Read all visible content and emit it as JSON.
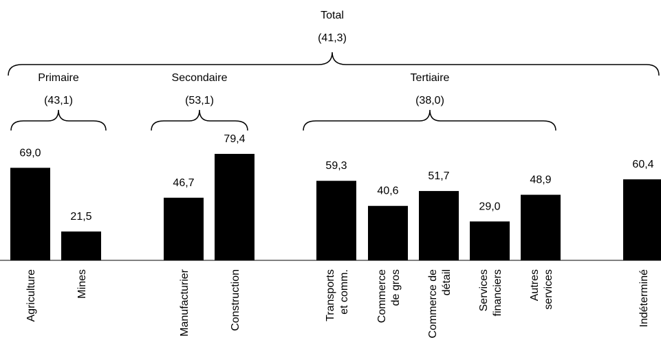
{
  "chart_data": {
    "type": "bar",
    "categories": [
      [
        "Agriculture"
      ],
      [
        "Mines"
      ],
      [
        "Manufacturier"
      ],
      [
        "Construction"
      ],
      [
        "Transports",
        "et comm."
      ],
      [
        "Commerce",
        "de gros"
      ],
      [
        "Commerce de",
        "détail"
      ],
      [
        "Services",
        "financiers"
      ],
      [
        "Autres",
        "services"
      ],
      [
        "Indéterminé"
      ]
    ],
    "values": [
      69.0,
      21.5,
      46.7,
      79.4,
      59.3,
      40.6,
      51.7,
      29.0,
      48.9,
      60.4
    ],
    "value_labels": [
      "69,0",
      "21,5",
      "46,7",
      "79,4",
      "59,3",
      "40,6",
      "51,7",
      "29,0",
      "48,9",
      "60,4"
    ],
    "groups": [
      {
        "name": "Primaire",
        "value": "(43,1)"
      },
      {
        "name": "Secondaire",
        "value": "(53,1)"
      },
      {
        "name": "Tertiaire",
        "value": "(38,0)"
      }
    ],
    "total": {
      "name": "Total",
      "value": "(41,3)"
    },
    "bar_color": "#000000",
    "grid": false,
    "legend": "none"
  }
}
